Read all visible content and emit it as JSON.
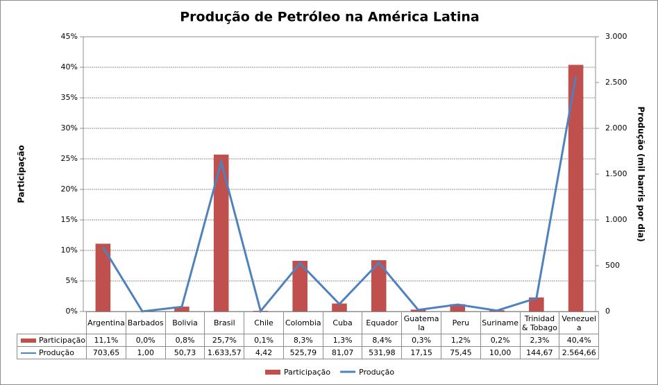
{
  "chart_data": {
    "type": "bar_line",
    "title": "Produção de Petróleo na América Latina",
    "ylabel": "Participação",
    "y2label": "Produção (mil barris por dia)",
    "categories": [
      "Argentina",
      "Barbados",
      "Bolivia",
      "Brasil",
      "Chile",
      "Colombia",
      "Cuba",
      "Equador",
      "Guatemala",
      "Peru",
      "Suriname",
      "Trinidad & Tobago",
      "Venezuela"
    ],
    "series": [
      {
        "name": "Participação",
        "type": "bar",
        "color": "#c0504d",
        "values": [
          11.1,
          0.0,
          0.8,
          25.7,
          0.1,
          8.3,
          1.3,
          8.4,
          0.3,
          1.2,
          0.2,
          2.3,
          40.4
        ],
        "value_labels": [
          "11,1%",
          "0,0%",
          "0,8%",
          "25,7%",
          "0,1%",
          "8,3%",
          "1,3%",
          "8,4%",
          "0,3%",
          "1,2%",
          "0,2%",
          "2,3%",
          "40,4%"
        ]
      },
      {
        "name": "Produção",
        "type": "line",
        "axis": "y2",
        "color": "#4f81bd",
        "values": [
          703.65,
          1.0,
          50.73,
          1633.57,
          4.42,
          525.79,
          81.07,
          531.98,
          17.15,
          75.45,
          10.0,
          144.67,
          2564.66
        ],
        "value_labels": [
          "703,65",
          "1,00",
          "50,73",
          "1.633,57",
          "4,42",
          "525,79",
          "81,07",
          "531,98",
          "17,15",
          "75,45",
          "10,00",
          "144,67",
          "2.564,66"
        ]
      }
    ],
    "ylim": [
      0,
      45
    ],
    "yticks": [
      {
        "value": 0,
        "label": "0%"
      },
      {
        "value": 5,
        "label": "5%"
      },
      {
        "value": 10,
        "label": "10%"
      },
      {
        "value": 15,
        "label": "15%"
      },
      {
        "value": 20,
        "label": "20%"
      },
      {
        "value": 25,
        "label": "25%"
      },
      {
        "value": 30,
        "label": "30%"
      },
      {
        "value": 35,
        "label": "35%"
      },
      {
        "value": 40,
        "label": "40%"
      },
      {
        "value": 45,
        "label": "45%"
      }
    ],
    "y2lim": [
      0,
      3000
    ],
    "y2ticks": [
      0,
      500,
      {
        "value": 1000,
        "label": "1.000"
      },
      {
        "value": 1500,
        "label": "1.500"
      },
      {
        "value": 2000,
        "label": "2.000"
      },
      {
        "value": 2500,
        "label": "2.500"
      },
      {
        "value": 3000,
        "label": "3.000"
      }
    ],
    "grid": true,
    "legend": "bottom"
  }
}
